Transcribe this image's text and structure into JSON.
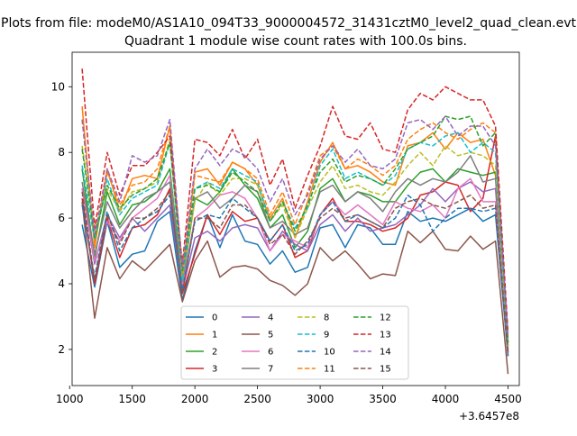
{
  "suptitle": "Plots from file: modeM0/AS1A10_094T33_9000004572_31431cztM0_level2_quad_clean.evt",
  "chart_data": {
    "type": "line",
    "title": "Quadrant 1 module wise count rates with 100.0s bins.",
    "xlabel": "",
    "ylabel": "",
    "x_offset_label": "+3.6457e8",
    "xlim": [
      1020,
      4590
    ],
    "ylim": [
      0.9,
      11.05
    ],
    "x_ticks": [
      1000,
      1500,
      2000,
      2500,
      3000,
      3500,
      4000,
      4500
    ],
    "y_ticks": [
      2,
      4,
      6,
      8,
      10
    ],
    "grid": false,
    "legend_position": "lower center",
    "legend_columns": 4,
    "x": [
      1100,
      1200,
      1300,
      1400,
      1500,
      1600,
      1700,
      1800,
      1900,
      2000,
      2100,
      2200,
      2300,
      2400,
      2500,
      2600,
      2700,
      2800,
      2900,
      3000,
      3100,
      3200,
      3300,
      3400,
      3500,
      3600,
      3700,
      3800,
      3900,
      4000,
      4100,
      4200,
      4300,
      4400,
      4500
    ],
    "series": [
      {
        "name": "0",
        "color": "#1f77b4",
        "dash": "solid",
        "values": [
          5.8,
          3.9,
          5.9,
          4.5,
          4.9,
          5.0,
          5.9,
          6.2,
          3.5,
          5.0,
          6.1,
          5.1,
          6.1,
          5.3,
          5.2,
          4.6,
          5.0,
          4.35,
          4.5,
          5.7,
          5.8,
          5.1,
          5.8,
          5.7,
          5.2,
          5.2,
          6.2,
          5.9,
          6.0,
          5.9,
          6.1,
          6.3,
          5.9,
          6.1,
          1.8
        ]
      },
      {
        "name": "1",
        "color": "#ff7f0e",
        "dash": "solid",
        "values": [
          9.4,
          5.1,
          7.5,
          6.2,
          7.2,
          7.3,
          7.2,
          8.8,
          4.2,
          7.4,
          7.5,
          7.0,
          7.7,
          7.5,
          7.0,
          6.0,
          6.6,
          5.4,
          6.5,
          7.7,
          8.3,
          7.5,
          7.6,
          7.4,
          7.1,
          7.0,
          8.2,
          8.3,
          8.6,
          8.1,
          8.6,
          8.3,
          8.4,
          7.3,
          2.2
        ]
      },
      {
        "name": "2",
        "color": "#2ca02c",
        "dash": "solid",
        "values": [
          7.5,
          4.8,
          6.8,
          5.8,
          6.4,
          6.5,
          6.8,
          7.5,
          4.0,
          6.6,
          6.4,
          6.8,
          7.5,
          7.0,
          6.6,
          5.7,
          6.1,
          5.1,
          5.6,
          6.9,
          7.2,
          6.5,
          6.8,
          6.7,
          6.5,
          6.5,
          7.0,
          7.4,
          7.5,
          7.1,
          7.5,
          7.4,
          7.3,
          7.4,
          2.1
        ]
      },
      {
        "name": "3",
        "color": "#d62728",
        "dash": "solid",
        "values": [
          6.6,
          4.0,
          6.0,
          4.8,
          5.7,
          5.8,
          6.1,
          6.9,
          3.7,
          4.9,
          6.1,
          5.5,
          6.2,
          5.9,
          6.0,
          5.3,
          5.8,
          4.8,
          5.0,
          6.1,
          6.6,
          5.9,
          5.9,
          5.8,
          5.6,
          5.7,
          6.0,
          6.7,
          6.8,
          7.1,
          7.0,
          6.2,
          6.6,
          8.5,
          1.9
        ]
      },
      {
        "name": "4",
        "color": "#9467bd",
        "dash": "solid",
        "values": [
          6.9,
          4.6,
          6.1,
          5.4,
          6.0,
          5.6,
          6.0,
          6.4,
          3.8,
          5.4,
          5.6,
          5.3,
          5.7,
          5.8,
          5.7,
          5.0,
          5.6,
          5.2,
          5.0,
          5.8,
          6.1,
          5.6,
          6.0,
          5.6,
          5.7,
          5.8,
          6.1,
          6.4,
          6.9,
          6.5,
          6.9,
          7.1,
          6.8,
          6.9,
          2.0
        ]
      },
      {
        "name": "5",
        "color": "#8c564b",
        "dash": "solid",
        "values": [
          6.5,
          2.95,
          5.1,
          4.15,
          4.7,
          4.4,
          4.8,
          5.2,
          3.45,
          4.7,
          5.3,
          4.2,
          4.5,
          4.55,
          4.45,
          4.1,
          3.95,
          3.65,
          4.0,
          5.1,
          4.7,
          5.0,
          4.6,
          4.15,
          4.3,
          4.25,
          5.6,
          5.25,
          5.6,
          5.05,
          5.0,
          5.45,
          5.05,
          5.3,
          1.25
        ]
      },
      {
        "name": "6",
        "color": "#e377c2",
        "dash": "solid",
        "values": [
          6.9,
          4.7,
          5.9,
          5.3,
          6.0,
          6.3,
          6.6,
          7.3,
          3.9,
          6.0,
          6.3,
          6.7,
          6.8,
          6.6,
          6.0,
          5.0,
          5.5,
          5.3,
          5.1,
          6.1,
          6.5,
          6.1,
          6.4,
          6.1,
          5.8,
          6.5,
          6.3,
          6.2,
          6.4,
          6.0,
          6.9,
          7.2,
          6.5,
          6.5,
          2.0
        ]
      },
      {
        "name": "7",
        "color": "#7f7f7f",
        "dash": "solid",
        "values": [
          7.1,
          4.9,
          6.5,
          5.7,
          6.2,
          6.6,
          6.8,
          7.1,
          4.1,
          6.6,
          6.8,
          6.3,
          6.6,
          7.0,
          6.8,
          5.7,
          5.9,
          5.5,
          5.7,
          6.8,
          7.0,
          6.5,
          6.8,
          6.6,
          6.2,
          6.8,
          7.2,
          7.0,
          7.2,
          7.1,
          7.4,
          7.9,
          7.1,
          7.2,
          2.1
        ]
      },
      {
        "name": "8",
        "color": "#bcbd22",
        "dash": "dashed",
        "values": [
          8.2,
          5.6,
          6.9,
          6.2,
          6.8,
          6.9,
          7.1,
          8.4,
          4.2,
          6.5,
          7.1,
          6.7,
          7.2,
          7.2,
          7.0,
          5.9,
          6.4,
          5.4,
          6.3,
          7.1,
          7.6,
          6.9,
          7.0,
          6.8,
          6.7,
          7.1,
          7.6,
          8.0,
          7.6,
          8.2,
          7.9,
          8.0,
          7.9,
          7.6,
          2.1
        ]
      },
      {
        "name": "9",
        "color": "#17becf",
        "dash": "dashed",
        "values": [
          7.6,
          5.3,
          7.2,
          6.1,
          6.6,
          6.8,
          7.0,
          8.3,
          4.1,
          6.9,
          7.1,
          6.9,
          7.5,
          7.3,
          7.1,
          5.9,
          6.5,
          5.7,
          6.3,
          7.6,
          8.1,
          7.2,
          7.4,
          7.2,
          7.0,
          7.3,
          8.1,
          8.3,
          8.2,
          8.5,
          8.6,
          8.0,
          8.3,
          8.0,
          2.2
        ]
      },
      {
        "name": "10",
        "color": "#1f77b4",
        "dash": "dashed",
        "values": [
          6.4,
          4.2,
          6.2,
          5.0,
          5.7,
          6.0,
          6.2,
          6.7,
          3.8,
          5.9,
          6.1,
          6.0,
          6.6,
          6.3,
          6.0,
          5.3,
          5.8,
          5.0,
          5.2,
          6.1,
          6.5,
          5.9,
          6.1,
          5.9,
          5.7,
          6.0,
          6.7,
          6.4,
          5.6,
          6.0,
          6.3,
          6.3,
          6.2,
          6.3,
          1.8
        ]
      },
      {
        "name": "11",
        "color": "#ff7f0e",
        "dash": "dashed",
        "values": [
          9.0,
          5.3,
          7.4,
          6.4,
          7.0,
          7.1,
          7.5,
          8.8,
          4.3,
          7.3,
          7.2,
          7.1,
          7.7,
          7.5,
          7.2,
          6.1,
          6.8,
          5.8,
          6.8,
          7.9,
          8.2,
          7.5,
          7.8,
          7.6,
          7.3,
          7.6,
          8.4,
          8.7,
          8.9,
          8.6,
          8.4,
          8.7,
          8.9,
          8.6,
          2.3
        ]
      },
      {
        "name": "12",
        "color": "#2ca02c",
        "dash": "dashed",
        "values": [
          8.1,
          5.4,
          7.0,
          6.3,
          6.7,
          6.9,
          7.2,
          8.3,
          4.4,
          6.9,
          7.0,
          6.8,
          7.4,
          7.1,
          6.8,
          5.9,
          6.5,
          5.6,
          6.4,
          7.4,
          7.8,
          7.1,
          7.3,
          7.2,
          7.0,
          7.5,
          8.1,
          8.3,
          8.5,
          9.1,
          9.0,
          9.1,
          8.2,
          8.6,
          2.2
        ]
      },
      {
        "name": "13",
        "color": "#d62728",
        "dash": "dashed",
        "values": [
          10.55,
          5.7,
          8.0,
          6.7,
          7.6,
          7.6,
          8.0,
          8.5,
          4.6,
          8.4,
          8.3,
          7.9,
          8.7,
          7.8,
          8.4,
          7.0,
          7.8,
          6.3,
          7.3,
          8.2,
          9.4,
          8.5,
          8.4,
          8.9,
          8.1,
          8.0,
          9.3,
          9.8,
          9.6,
          10.0,
          9.8,
          9.6,
          9.6,
          8.8,
          2.5
        ]
      },
      {
        "name": "14",
        "color": "#9467bd",
        "dash": "dashed",
        "values": [
          9.0,
          5.5,
          7.5,
          6.5,
          7.9,
          7.7,
          7.9,
          9.0,
          4.5,
          7.5,
          8.1,
          7.6,
          8.1,
          7.9,
          7.5,
          6.5,
          7.2,
          6.1,
          6.7,
          7.8,
          8.2,
          7.7,
          8.1,
          7.6,
          7.5,
          7.8,
          8.9,
          9.0,
          8.7,
          9.1,
          8.5,
          8.8,
          8.8,
          8.2,
          2.4
        ]
      },
      {
        "name": "15",
        "color": "#8c564b",
        "dash": "dashed",
        "values": [
          6.8,
          4.1,
          6.1,
          5.2,
          6.0,
          6.0,
          6.3,
          6.8,
          3.7,
          6.0,
          6.0,
          5.7,
          6.4,
          6.4,
          6.0,
          5.2,
          5.5,
          4.9,
          5.3,
          6.0,
          6.3,
          6.0,
          6.1,
          5.9,
          5.7,
          6.3,
          6.5,
          6.6,
          6.4,
          6.3,
          6.5,
          6.7,
          6.3,
          6.4,
          1.9
        ]
      }
    ]
  }
}
